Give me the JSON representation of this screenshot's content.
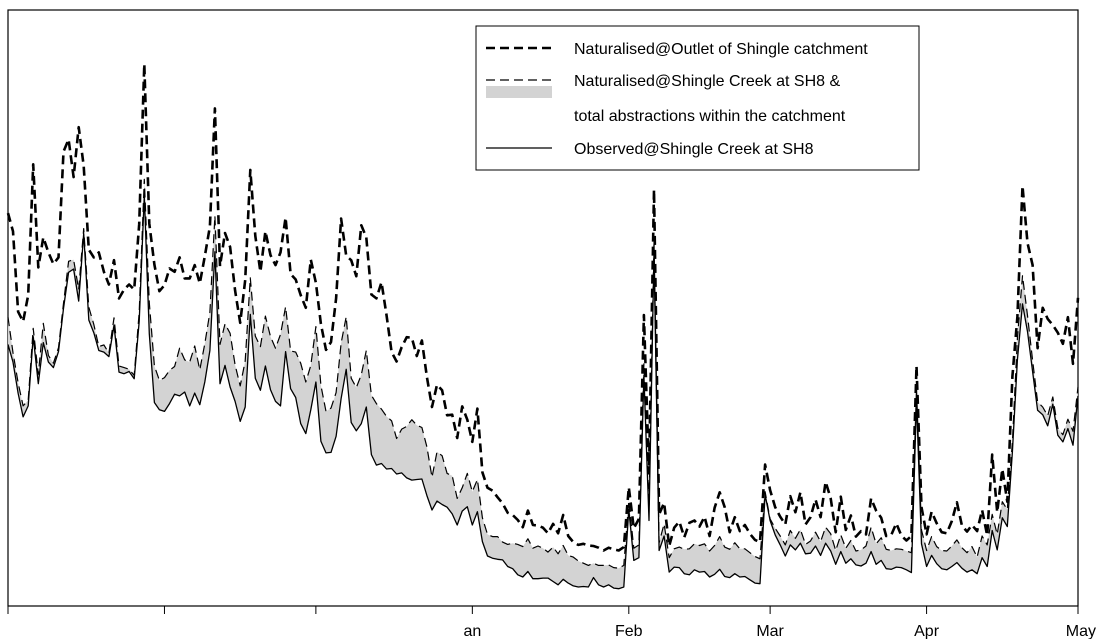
{
  "chart_data": {
    "type": "line",
    "title": "",
    "xlabel": "",
    "ylabel": "",
    "x_ticks": [
      {
        "label": "",
        "day": 0
      },
      {
        "label": "",
        "day": 31
      },
      {
        "label": "",
        "day": 61
      },
      {
        "label": "an",
        "day": 92
      },
      {
        "label": "Feb",
        "day": 123
      },
      {
        "label": "Mar",
        "day": 151
      },
      {
        "label": "Apr",
        "day": 182
      },
      {
        "label": "May",
        "day": 212
      }
    ],
    "xlim": [
      0,
      212
    ],
    "ylim": [
      0,
      100
    ],
    "grid": false,
    "legend_position": "top-right",
    "legend": [
      {
        "label": "Naturalised@Outlet of Shingle catchment",
        "style": "thick-dashed"
      },
      {
        "label": "Naturalised@Shingle Creek at SH8 &",
        "style": "thin-dashed-with-grey-band"
      },
      {
        "label": "total abstractions within the catchment",
        "style": "none"
      },
      {
        "label": "Observed@Shingle Creek at SH8",
        "style": "solid"
      }
    ],
    "colors": {
      "line": "#000000",
      "band": "#d3d3d3"
    },
    "x": [
      0,
      1,
      2,
      3,
      4,
      5,
      6,
      7,
      8,
      9,
      10,
      11,
      12,
      13,
      14,
      15,
      16,
      17,
      18,
      19,
      20,
      21,
      22,
      23,
      24,
      25,
      26,
      27,
      28,
      29,
      30,
      31,
      32,
      33,
      34,
      35,
      36,
      37,
      38,
      39,
      40,
      41,
      42,
      43,
      44,
      45,
      46,
      47,
      48,
      49,
      50,
      51,
      52,
      53,
      54,
      55,
      56,
      57,
      58,
      59,
      60,
      61,
      62,
      63,
      64,
      65,
      66,
      67,
      68,
      69,
      70,
      71,
      72,
      73,
      74,
      75,
      76,
      77,
      78,
      79,
      80,
      81,
      82,
      83,
      84,
      85,
      86,
      87,
      88,
      89,
      90,
      91,
      92,
      93,
      94,
      95,
      96,
      97,
      98,
      99,
      100,
      101,
      102,
      103,
      104,
      105,
      106,
      107,
      108,
      109,
      110,
      111,
      112,
      113,
      114,
      115,
      116,
      117,
      118,
      119,
      120,
      121,
      122,
      123,
      124,
      125,
      126,
      127,
      128,
      129,
      130,
      131,
      132,
      133,
      134,
      135,
      136,
      137,
      138,
      139,
      140,
      141,
      142,
      143,
      144,
      145,
      146,
      147,
      148,
      149,
      150,
      151,
      152,
      153,
      154,
      155,
      156,
      157,
      158,
      159,
      160,
      161,
      162,
      163,
      164,
      165,
      166,
      167,
      168,
      169,
      170,
      171,
      172,
      173,
      174,
      175,
      176,
      177,
      178,
      179,
      180,
      181,
      182,
      183,
      184,
      185,
      186,
      187,
      188,
      189,
      190,
      191,
      192,
      193,
      194,
      195,
      196,
      197,
      198,
      199,
      200,
      201,
      202,
      203,
      204,
      205,
      206,
      207,
      208,
      209,
      210,
      211,
      212
    ],
    "series": [
      {
        "name": "Naturalised@Outlet of Shingle catchment",
        "style": "thick-dashed",
        "values": [
          68.4,
          65.1,
          50.6,
          48.8,
          53.6,
          77.2,
          58.6,
          64.0,
          61.3,
          59.2,
          60.4,
          79.5,
          81.7,
          74.9,
          83.9,
          76.9,
          61.8,
          60.4,
          61.3,
          57.8,
          55.5,
          59.9,
          53.0,
          54.6,
          55.5,
          54.6,
          66.4,
          95.3,
          66.5,
          59.1,
          54.3,
          55.4,
          58.4,
          57.8,
          60.4,
          56.6,
          56.6,
          59.0,
          55.7,
          60.6,
          66.0,
          87.3,
          58.8,
          64.8,
          62.3,
          54.4,
          48.6,
          56.3,
          76.2,
          64.3,
          57.8,
          65.1,
          60.8,
          59.0,
          61.3,
          67.6,
          57.4,
          56.4,
          53.6,
          51.3,
          60.0,
          55.8,
          48.4,
          43.7,
          45.1,
          53.0,
          67.4,
          60.7,
          59.9,
          57.0,
          66.2,
          64.0,
          53.7,
          53.0,
          55.9,
          50.0,
          43.3,
          41.6,
          44.2,
          46.0,
          45.9,
          42.6,
          45.4,
          38.8,
          33.4,
          37.4,
          36.4,
          31.9,
          32.0,
          27.8,
          33.5,
          31.1,
          27.1,
          33.1,
          21.6,
          18.8,
          18.3,
          17.1,
          16.0,
          14.3,
          13.9,
          13.0,
          11.7,
          14.7,
          12.1,
          12.0,
          11.6,
          10.6,
          12.3,
          10.6,
          13.9,
          10.1,
          9.0,
          8.5,
          8.7,
          8.4,
          8.3,
          8.0,
          7.5,
          8.0,
          7.7,
          7.5,
          8.1,
          18.9,
          11.5,
          13.2,
          50.0,
          21.5,
          72.6,
          14.0,
          16.1,
          8.3,
          11.6,
          12.7,
          9.9,
          12.5,
          12.9,
          11.8,
          13.6,
          10.1,
          15.2,
          18.0,
          15.3,
          10.8,
          13.5,
          11.0,
          12.1,
          10.5,
          9.4,
          9.0,
          23.0,
          18.4,
          15.3,
          13.6,
          12.2,
          17.3,
          14.4,
          18.0,
          12.2,
          13.5,
          16.7,
          13.5,
          19.9,
          16.9,
          10.8,
          17.2,
          11.2,
          13.8,
          10.0,
          11.0,
          10.4,
          16.9,
          14.7,
          13.4,
          10.1,
          10.3,
          12.4,
          10.2,
          9.3,
          10.1,
          40.8,
          15.3,
          10.4,
          14.5,
          12.4,
          10.8,
          10.6,
          12.8,
          16.2,
          12.0,
          10.9,
          12.1,
          11.0,
          14.8,
          10.2,
          24.8,
          14.4,
          22.2,
          16.3,
          38.9,
          49.7,
          73.3,
          63.0,
          59.0,
          44.0,
          51.3,
          49.3,
          48.2,
          46.8,
          44.8,
          49.6,
          41.2,
          53.1
        ]
      },
      {
        "name": "Naturalised@Shingle Creek at SH8 &",
        "style": "thin-dashed",
        "values": [
          49.6,
          43.2,
          37.8,
          33.6,
          34.6,
          47.6,
          39.3,
          48.5,
          42.7,
          41.3,
          44.1,
          52.1,
          59.7,
          60.0,
          54.6,
          65.6,
          51.4,
          48.3,
          44.3,
          44.6,
          43.1,
          49.5,
          40.8,
          40.5,
          40.2,
          39.1,
          50.5,
          74.5,
          52.2,
          40.8,
          38.2,
          38.7,
          40.0,
          40.7,
          44.0,
          41.9,
          41.5,
          44.4,
          40.1,
          44.8,
          50.5,
          67.9,
          44.7,
          48.4,
          46.7,
          41.0,
          37.2,
          41.7,
          56.7,
          46.2,
          44.3,
          49.8,
          46.1,
          44.0,
          46.5,
          51.5,
          43.5,
          43.3,
          41.3,
          37.9,
          40.9,
          47.9,
          37.3,
          32.6,
          33.2,
          36.0,
          44.9,
          49.7,
          38.6,
          36.9,
          39.2,
          43.6,
          35.5,
          34.0,
          33.0,
          31.7,
          30.9,
          27.7,
          29.4,
          29.9,
          31.1,
          30.1,
          29.7,
          26.2,
          20.7,
          25.3,
          24.6,
          21.4,
          21.0,
          16.9,
          18.8,
          21.4,
          18.1,
          20.3,
          13.4,
          10.4,
          10.0,
          10.0,
          9.0,
          8.6,
          8.8,
          8.6,
          8.2,
          9.6,
          7.9,
          8.3,
          7.9,
          7.2,
          8.1,
          6.9,
          8.4,
          6.6,
          6.3,
          5.6,
          5.2,
          4.8,
          5.2,
          4.8,
          4.8,
          4.9,
          4.4,
          4.3,
          4.8,
          16.5,
          7.9,
          8.5,
          41.3,
          15.4,
          63.4,
          8.9,
          12.3,
          6.2,
          7.8,
          8.1,
          7.7,
          7.8,
          8.7,
          8.4,
          8.7,
          7.4,
          8.4,
          10.0,
          8.1,
          7.7,
          8.9,
          7.8,
          7.8,
          7.1,
          6.4,
          6.0,
          18.1,
          13.2,
          11.5,
          10.1,
          8.5,
          11.1,
          9.7,
          11.3,
          8.6,
          9.2,
          10.8,
          9.1,
          11.7,
          10.5,
          7.5,
          10.3,
          7.9,
          9.3,
          7.4,
          7.6,
          8.3,
          11.7,
          8.7,
          9.8,
          7.7,
          7.5,
          7.8,
          7.7,
          7.4,
          7.1,
          36.7,
          11.2,
          7.5,
          10.0,
          8.2,
          7.5,
          7.4,
          8.3,
          9.4,
          8.0,
          7.1,
          8.2,
          6.3,
          10.1,
          8.5,
          14.0,
          10.4,
          16.3,
          14.9,
          27.1,
          45.8,
          57.1,
          49.9,
          41.8,
          34.3,
          33.4,
          31.8,
          35.2,
          29.6,
          28.4,
          31.2,
          29.0,
          37.0
        ]
      },
      {
        "name": "Observed@Shingle Creek at SH8",
        "style": "solid",
        "values": [
          44.7,
          41.5,
          35.9,
          31.6,
          33.6,
          46.1,
          37.6,
          45.0,
          41.5,
          40.5,
          43.4,
          51.2,
          57.7,
          58.3,
          52.5,
          64.7,
          49.1,
          46.8,
          43.6,
          43.3,
          42.5,
          48.1,
          39.7,
          39.4,
          39.8,
          38.5,
          48.8,
          71.6,
          46.6,
          34.2,
          32.9,
          32.6,
          34.0,
          35.7,
          35.4,
          36.1,
          33.6,
          35.9,
          33.8,
          37.9,
          43.6,
          61.4,
          37.6,
          40.9,
          37.0,
          34.4,
          30.8,
          33.4,
          50.1,
          38.6,
          36.4,
          40.8,
          36.5,
          34.4,
          33.6,
          43.4,
          36.7,
          35.1,
          30.4,
          28.6,
          32.9,
          37.9,
          27.2,
          25.1,
          25.2,
          28.1,
          34.9,
          40.2,
          30.6,
          29.1,
          30.4,
          33.4,
          24.8,
          22.9,
          23.2,
          22.2,
          22.3,
          21.3,
          21.5,
          20.6,
          20.2,
          20.3,
          20.4,
          17.4,
          14.8,
          16.4,
          15.8,
          15.3,
          14.1,
          12.1,
          14.6,
          15.4,
          12.1,
          14.5,
          9.1,
          6.5,
          6.1,
          5.9,
          5.8,
          4.6,
          4.2,
          3.1,
          2.7,
          3.7,
          2.4,
          2.4,
          2.5,
          2.5,
          1.9,
          1.3,
          2.3,
          1.6,
          1.1,
          0.9,
          1.0,
          0.9,
          2.6,
          1.3,
          0.9,
          1.3,
          0.7,
          0.6,
          0.9,
          14.9,
          5.7,
          6.2,
          39.1,
          12.9,
          61.3,
          7.5,
          10.1,
          3.6,
          4.5,
          4.4,
          3.3,
          3.1,
          4.0,
          3.6,
          3.7,
          2.7,
          3.2,
          4.1,
          2.8,
          2.6,
          3.3,
          2.7,
          2.8,
          2.2,
          1.6,
          1.5,
          17.6,
          12.9,
          10.3,
          8.5,
          6.5,
          8.5,
          7.6,
          8.8,
          6.9,
          7.0,
          8.3,
          6.6,
          8.8,
          7.4,
          5.0,
          7.3,
          5.2,
          6.0,
          4.9,
          4.7,
          5.2,
          7.3,
          5.0,
          5.7,
          4.2,
          4.1,
          4.5,
          4.4,
          4.0,
          3.5,
          34.5,
          8.7,
          4.6,
          6.6,
          5.1,
          4.2,
          4.0,
          4.6,
          5.3,
          4.3,
          3.6,
          4.0,
          3.3,
          6.2,
          4.6,
          11.1,
          7.6,
          13.4,
          11.8,
          25.3,
          41.9,
          52.0,
          47.0,
          39.8,
          32.8,
          32.0,
          30.0,
          33.9,
          28.3,
          27.1,
          29.5,
          26.5,
          35.4
        ]
      }
    ]
  }
}
